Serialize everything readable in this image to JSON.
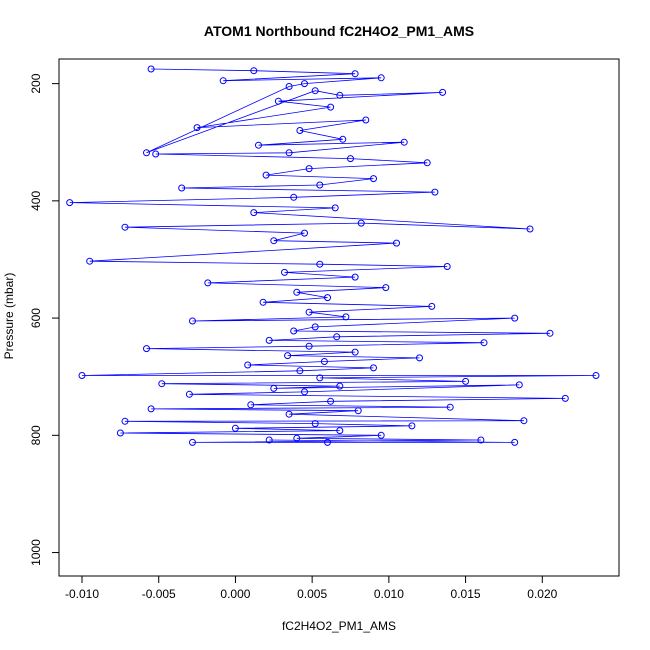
{
  "chart_data": {
    "type": "scatter",
    "title": "ATOM1 Northbound fC2H4O2_PM1_AMS",
    "xlabel": "fC2H4O2_PM1_AMS",
    "ylabel": "Pressure (mbar)",
    "xlim": [
      -0.0115,
      0.025
    ],
    "ylim": [
      1040,
      158
    ],
    "y_reversed": true,
    "x_ticks": [
      -0.01,
      -0.005,
      0.0,
      0.005,
      0.01,
      0.015,
      0.02
    ],
    "x_tick_labels": [
      "-0.010",
      "-0.005",
      "0.000",
      "0.005",
      "0.010",
      "0.015",
      "0.020"
    ],
    "y_ticks": [
      200,
      400,
      600,
      800,
      1000
    ],
    "y_tick_labels": [
      "200",
      "400",
      "600",
      "800",
      "1000"
    ],
    "grid": false,
    "marker": "open-circle",
    "line": true,
    "series_color": "#0000ff",
    "points": [
      [
        -0.0055,
        175
      ],
      [
        0.0012,
        178
      ],
      [
        0.0078,
        183
      ],
      [
        -0.0008,
        195
      ],
      [
        0.0095,
        190
      ],
      [
        0.0045,
        200
      ],
      [
        0.0035,
        205
      ],
      [
        -0.0058,
        318
      ],
      [
        0.0052,
        212
      ],
      [
        0.0068,
        220
      ],
      [
        0.0135,
        215
      ],
      [
        0.0028,
        230
      ],
      [
        0.0062,
        240
      ],
      [
        -0.0025,
        275
      ],
      [
        0.0085,
        262
      ],
      [
        0.0042,
        280
      ],
      [
        0.007,
        295
      ],
      [
        0.0015,
        305
      ],
      [
        0.011,
        300
      ],
      [
        0.0035,
        318
      ],
      [
        -0.0052,
        320
      ],
      [
        0.0075,
        328
      ],
      [
        0.0125,
        335
      ],
      [
        0.0048,
        345
      ],
      [
        0.002,
        356
      ],
      [
        0.009,
        362
      ],
      [
        0.0055,
        373
      ],
      [
        -0.0035,
        378
      ],
      [
        0.013,
        385
      ],
      [
        0.0038,
        394
      ],
      [
        -0.0108,
        403
      ],
      [
        0.0065,
        412
      ],
      [
        0.0012,
        420
      ],
      [
        0.0192,
        448
      ],
      [
        0.0082,
        438
      ],
      [
        -0.0072,
        445
      ],
      [
        0.0045,
        455
      ],
      [
        0.0025,
        468
      ],
      [
        0.0105,
        472
      ],
      [
        -0.0095,
        503
      ],
      [
        0.0055,
        508
      ],
      [
        0.0138,
        512
      ],
      [
        0.0032,
        522
      ],
      [
        0.0078,
        530
      ],
      [
        -0.0018,
        540
      ],
      [
        0.0098,
        548
      ],
      [
        0.004,
        556
      ],
      [
        0.006,
        565
      ],
      [
        0.0018,
        573
      ],
      [
        0.0128,
        580
      ],
      [
        0.0048,
        590
      ],
      [
        0.0072,
        598
      ],
      [
        -0.0028,
        605
      ],
      [
        0.0182,
        600
      ],
      [
        0.0052,
        615
      ],
      [
        0.0038,
        622
      ],
      [
        0.0205,
        626
      ],
      [
        0.0066,
        632
      ],
      [
        0.0022,
        638
      ],
      [
        0.0162,
        642
      ],
      [
        0.0048,
        648
      ],
      [
        -0.0058,
        652
      ],
      [
        0.0078,
        658
      ],
      [
        0.0034,
        664
      ],
      [
        0.012,
        668
      ],
      [
        0.0058,
        674
      ],
      [
        0.0008,
        680
      ],
      [
        0.009,
        685
      ],
      [
        0.0042,
        690
      ],
      [
        -0.01,
        698
      ],
      [
        0.0235,
        698
      ],
      [
        0.0055,
        702
      ],
      [
        0.015,
        708
      ],
      [
        -0.0048,
        712
      ],
      [
        0.0068,
        716
      ],
      [
        0.0025,
        720
      ],
      [
        0.0185,
        714
      ],
      [
        0.0045,
        726
      ],
      [
        -0.003,
        730
      ],
      [
        0.0215,
        737
      ],
      [
        0.0062,
        742
      ],
      [
        0.001,
        748
      ],
      [
        0.014,
        752
      ],
      [
        -0.0055,
        755
      ],
      [
        0.008,
        758
      ],
      [
        0.0035,
        764
      ],
      [
        0.0188,
        775
      ],
      [
        -0.0072,
        776
      ],
      [
        0.0052,
        780
      ],
      [
        0.0115,
        784
      ],
      [
        0.0,
        788
      ],
      [
        0.0068,
        792
      ],
      [
        -0.0075,
        796
      ],
      [
        0.0095,
        800
      ],
      [
        0.004,
        805
      ],
      [
        0.016,
        808
      ],
      [
        -0.0028,
        812
      ],
      [
        0.006,
        812
      ],
      [
        0.0182,
        812
      ],
      [
        0.0022,
        808
      ]
    ]
  }
}
